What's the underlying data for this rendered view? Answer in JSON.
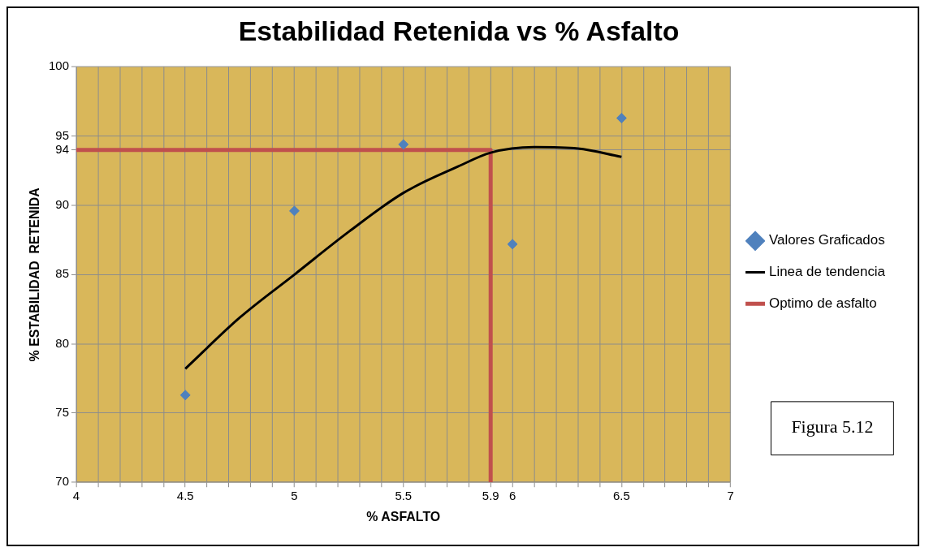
{
  "chart_data": {
    "type": "scatter",
    "title": "Estabilidad Retenida vs % Asfalto",
    "xlabel": "% ASFALTO",
    "ylabel": "% ESTABILIDAD  RETENIDA",
    "series": [
      {
        "name": "Valores Graficados",
        "marker": "diamond",
        "color": "#4f81bd",
        "x": [
          4.5,
          5,
          5.5,
          6,
          6.5
        ],
        "values": [
          76.3,
          89.6,
          94.4,
          87.2,
          96.3
        ]
      },
      {
        "name": "Linea de tendencia",
        "type": "line",
        "marker": "none",
        "color": "#000000",
        "x": [
          4.5,
          4.75,
          5,
          5.25,
          5.5,
          5.75,
          5.9,
          6.1,
          6.3,
          6.5
        ],
        "values": [
          78.2,
          81.9,
          85.0,
          88.1,
          90.9,
          92.8,
          93.8,
          94.2,
          94.1,
          93.5
        ]
      },
      {
        "name": "Optimo de asfalto",
        "type": "line",
        "marker": "none",
        "color": "#c0504d",
        "x": [
          4,
          5.9,
          5.9
        ],
        "values": [
          94,
          94,
          70
        ]
      }
    ],
    "xlim": [
      4,
      7
    ],
    "xticks": [
      4,
      {
        "value": 4.1,
        "label": null
      },
      {
        "value": 4.2,
        "label": null
      },
      {
        "value": 4.3,
        "label": null
      },
      {
        "value": 4.4,
        "label": null
      },
      4.5,
      {
        "value": 4.6,
        "label": null
      },
      {
        "value": 4.7,
        "label": null
      },
      {
        "value": 4.8,
        "label": null
      },
      {
        "value": 4.9,
        "label": null
      },
      5,
      {
        "value": 5.1,
        "label": null
      },
      {
        "value": 5.2,
        "label": null
      },
      {
        "value": 5.3,
        "label": null
      },
      {
        "value": 5.4,
        "label": null
      },
      5.5,
      {
        "value": 5.6,
        "label": null
      },
      {
        "value": 5.7,
        "label": null
      },
      {
        "value": 5.8,
        "label": null
      },
      5.9,
      6,
      {
        "value": 6.1,
        "label": null
      },
      {
        "value": 6.2,
        "label": null
      },
      {
        "value": 6.3,
        "label": null
      },
      {
        "value": 6.4,
        "label": null
      },
      6.5,
      {
        "value": 6.6,
        "label": null
      },
      {
        "value": 6.7,
        "label": null
      },
      {
        "value": 6.8,
        "label": null
      },
      {
        "value": 6.9,
        "label": null
      },
      7
    ],
    "ylim": [
      70,
      100
    ],
    "yticks": [
      70,
      75,
      80,
      85,
      90,
      94,
      95,
      100
    ],
    "grid": true,
    "legend": "right",
    "annotations": [
      "Figura 5.12"
    ]
  }
}
